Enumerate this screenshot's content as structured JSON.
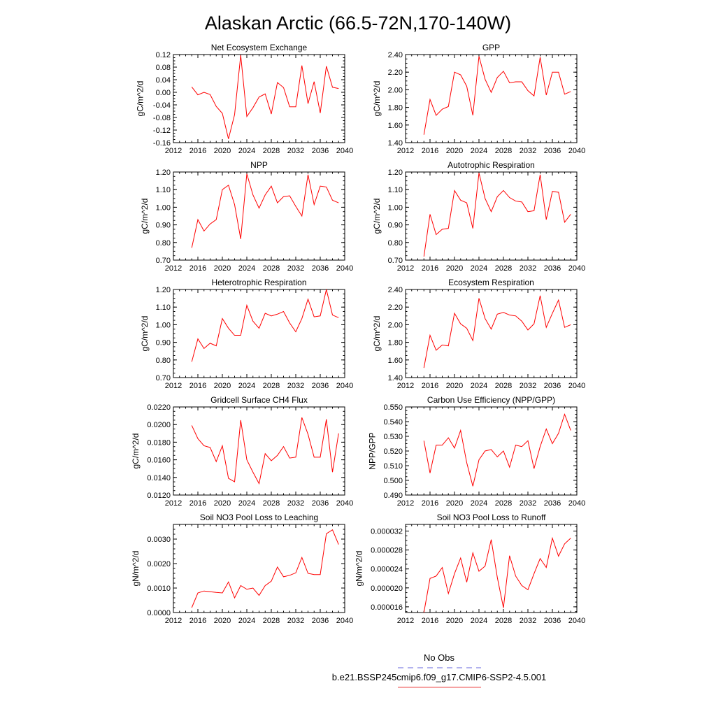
{
  "figure": {
    "title": "Alaskan Arctic (66.5-72N,170-140W)"
  },
  "legend": {
    "entries": [
      {
        "label": "No Obs",
        "color": "#6666dd",
        "dash": true
      },
      {
        "label": "b.e21.BSSP245cmip6.f09_g17.CMIP6-SSP2-4.5.001",
        "color": "#ee4444",
        "dash": false
      }
    ]
  },
  "chart_data": [
    {
      "type": "line",
      "title": "Net Ecosystem Exchange",
      "ylabel": "gC/m^2/d",
      "xlim": [
        2012,
        2040
      ],
      "xticks": [
        2012,
        2016,
        2020,
        2024,
        2028,
        2032,
        2036,
        2040
      ],
      "ylim": [
        -0.16,
        0.12
      ],
      "yticks": [
        "-0.16",
        "-0.12",
        "-0.08",
        "-0.04",
        "0.00",
        "0.04",
        "0.08",
        "0.12"
      ],
      "yminor": 0.01,
      "color": "#ff0000",
      "x": [
        2015,
        2016,
        2017,
        2018,
        2019,
        2020,
        2021,
        2022,
        2023,
        2024,
        2025,
        2026,
        2027,
        2028,
        2029,
        2030,
        2031,
        2032,
        2033,
        2034,
        2035,
        2036,
        2037,
        2038,
        2039
      ],
      "values": [
        0.017,
        -0.008,
        0.0,
        -0.007,
        -0.045,
        -0.067,
        -0.148,
        -0.071,
        0.118,
        -0.077,
        -0.049,
        -0.015,
        -0.005,
        -0.069,
        0.031,
        0.015,
        -0.046,
        -0.046,
        0.085,
        -0.036,
        0.034,
        -0.066,
        0.083,
        0.016,
        0.012
      ]
    },
    {
      "type": "line",
      "title": "GPP",
      "ylabel": "gC/m^2/d",
      "xlim": [
        2012,
        2040
      ],
      "xticks": [
        2012,
        2016,
        2020,
        2024,
        2028,
        2032,
        2036,
        2040
      ],
      "ylim": [
        1.4,
        2.4
      ],
      "yticks": [
        "1.40",
        "1.60",
        "1.80",
        "2.00",
        "2.20",
        "2.40"
      ],
      "yminor": 0.05,
      "color": "#ff0000",
      "x": [
        2015,
        2016,
        2017,
        2018,
        2019,
        2020,
        2021,
        2022,
        2023,
        2024,
        2025,
        2026,
        2027,
        2028,
        2029,
        2030,
        2031,
        2032,
        2033,
        2034,
        2035,
        2036,
        2037,
        2038,
        2039
      ],
      "values": [
        1.49,
        1.89,
        1.71,
        1.78,
        1.81,
        2.2,
        2.17,
        2.04,
        1.71,
        2.38,
        2.12,
        1.97,
        2.14,
        2.21,
        2.08,
        2.09,
        2.09,
        1.99,
        1.93,
        2.37,
        1.94,
        2.2,
        2.2,
        1.95,
        1.98
      ]
    },
    {
      "type": "line",
      "title": "NPP",
      "ylabel": "gC/m^2/d",
      "xlim": [
        2012,
        2040
      ],
      "xticks": [
        2012,
        2016,
        2020,
        2024,
        2028,
        2032,
        2036,
        2040
      ],
      "ylim": [
        0.7,
        1.2
      ],
      "yticks": [
        "0.70",
        "0.80",
        "0.90",
        "1.00",
        "1.10",
        "1.20"
      ],
      "yminor": 0.025,
      "color": "#ff0000",
      "x": [
        2015,
        2016,
        2017,
        2018,
        2019,
        2020,
        2021,
        2022,
        2023,
        2024,
        2025,
        2026,
        2027,
        2028,
        2029,
        2030,
        2031,
        2032,
        2033,
        2034,
        2035,
        2036,
        2037,
        2038,
        2039
      ],
      "values": [
        0.77,
        0.93,
        0.865,
        0.905,
        0.93,
        1.1,
        1.125,
        1.015,
        0.82,
        1.19,
        1.07,
        0.995,
        1.07,
        1.12,
        1.025,
        1.06,
        1.065,
        1.005,
        0.95,
        1.185,
        1.015,
        1.12,
        1.115,
        1.04,
        1.025
      ]
    },
    {
      "type": "line",
      "title": "Autotrophic Respiration",
      "ylabel": "gC/m^2/d",
      "xlim": [
        2012,
        2040
      ],
      "xticks": [
        2012,
        2016,
        2020,
        2024,
        2028,
        2032,
        2036,
        2040
      ],
      "ylim": [
        0.7,
        1.2
      ],
      "yticks": [
        "0.70",
        "0.80",
        "0.90",
        "1.00",
        "1.10",
        "1.20"
      ],
      "yminor": 0.025,
      "color": "#ff0000",
      "x": [
        2015,
        2016,
        2017,
        2018,
        2019,
        2020,
        2021,
        2022,
        2023,
        2024,
        2025,
        2026,
        2027,
        2028,
        2029,
        2030,
        2031,
        2032,
        2033,
        2034,
        2035,
        2036,
        2037,
        2038,
        2039
      ],
      "values": [
        0.72,
        0.96,
        0.845,
        0.875,
        0.88,
        1.095,
        1.04,
        1.025,
        0.88,
        1.195,
        1.05,
        0.975,
        1.06,
        1.095,
        1.055,
        1.035,
        1.03,
        0.975,
        0.98,
        1.185,
        0.93,
        1.09,
        1.085,
        0.915,
        0.96
      ]
    },
    {
      "type": "line",
      "title": "Heterotrophic Respiration",
      "ylabel": "gC/m^2/d",
      "xlim": [
        2012,
        2040
      ],
      "xticks": [
        2012,
        2016,
        2020,
        2024,
        2028,
        2032,
        2036,
        2040
      ],
      "ylim": [
        0.7,
        1.2
      ],
      "yticks": [
        "0.70",
        "0.80",
        "0.90",
        "1.00",
        "1.10",
        "1.20"
      ],
      "yminor": 0.025,
      "color": "#ff0000",
      "x": [
        2015,
        2016,
        2017,
        2018,
        2019,
        2020,
        2021,
        2022,
        2023,
        2024,
        2025,
        2026,
        2027,
        2028,
        2029,
        2030,
        2031,
        2032,
        2033,
        2034,
        2035,
        2036,
        2037,
        2038,
        2039
      ],
      "values": [
        0.79,
        0.92,
        0.865,
        0.895,
        0.88,
        1.035,
        0.98,
        0.94,
        0.94,
        1.11,
        1.02,
        0.98,
        1.065,
        1.05,
        1.06,
        1.075,
        1.01,
        0.96,
        1.035,
        1.145,
        1.045,
        1.05,
        1.2,
        1.055,
        1.04
      ]
    },
    {
      "type": "line",
      "title": "Ecosystem Respiration",
      "ylabel": "gC/m^2/d",
      "xlim": [
        2012,
        2040
      ],
      "xticks": [
        2012,
        2016,
        2020,
        2024,
        2028,
        2032,
        2036,
        2040
      ],
      "ylim": [
        1.4,
        2.4
      ],
      "yticks": [
        "1.40",
        "1.60",
        "1.80",
        "2.00",
        "2.20",
        "2.40"
      ],
      "yminor": 0.05,
      "color": "#ff0000",
      "x": [
        2015,
        2016,
        2017,
        2018,
        2019,
        2020,
        2021,
        2022,
        2023,
        2024,
        2025,
        2026,
        2027,
        2028,
        2029,
        2030,
        2031,
        2032,
        2033,
        2034,
        2035,
        2036,
        2037,
        2038,
        2039
      ],
      "values": [
        1.51,
        1.88,
        1.71,
        1.77,
        1.76,
        2.13,
        2.01,
        1.96,
        1.82,
        2.3,
        2.07,
        1.95,
        2.12,
        2.14,
        2.11,
        2.1,
        2.04,
        1.94,
        2.01,
        2.33,
        1.97,
        2.13,
        2.28,
        1.97,
        2.0
      ]
    },
    {
      "type": "line",
      "title": "Gridcell Surface CH4 Flux",
      "ylabel": "gC/m^2/d",
      "xlim": [
        2012,
        2040
      ],
      "xticks": [
        2012,
        2016,
        2020,
        2024,
        2028,
        2032,
        2036,
        2040
      ],
      "ylim": [
        0.012,
        0.022
      ],
      "yticks": [
        "0.0120",
        "0.0140",
        "0.0160",
        "0.0180",
        "0.0200",
        "0.0220"
      ],
      "yminor": 0.0005,
      "color": "#ff0000",
      "x": [
        2015,
        2016,
        2017,
        2018,
        2019,
        2020,
        2021,
        2022,
        2023,
        2024,
        2025,
        2026,
        2027,
        2028,
        2029,
        2030,
        2031,
        2032,
        2033,
        2034,
        2035,
        2036,
        2037,
        2038,
        2039
      ],
      "values": [
        0.0199,
        0.0184,
        0.0176,
        0.0174,
        0.0158,
        0.0176,
        0.0139,
        0.0135,
        0.0205,
        0.016,
        0.0146,
        0.0133,
        0.0167,
        0.0159,
        0.0165,
        0.0175,
        0.0162,
        0.0163,
        0.0208,
        0.0189,
        0.0163,
        0.0163,
        0.0206,
        0.0146,
        0.019
      ]
    },
    {
      "type": "line",
      "title": "Carbon Use Efficiency (NPP/GPP)",
      "ylabel": "NPP/GPP",
      "xlim": [
        2012,
        2040
      ],
      "xticks": [
        2012,
        2016,
        2020,
        2024,
        2028,
        2032,
        2036,
        2040
      ],
      "ylim": [
        0.49,
        0.55
      ],
      "yticks": [
        "0.490",
        "0.500",
        "0.510",
        "0.520",
        "0.530",
        "0.540",
        "0.550"
      ],
      "yminor": 0.0025,
      "color": "#ff0000",
      "x": [
        2015,
        2016,
        2017,
        2018,
        2019,
        2020,
        2021,
        2022,
        2023,
        2024,
        2025,
        2026,
        2027,
        2028,
        2029,
        2030,
        2031,
        2032,
        2033,
        2034,
        2035,
        2036,
        2037,
        2038,
        2039
      ],
      "values": [
        0.527,
        0.505,
        0.524,
        0.524,
        0.529,
        0.522,
        0.534,
        0.512,
        0.496,
        0.514,
        0.52,
        0.521,
        0.516,
        0.52,
        0.509,
        0.524,
        0.523,
        0.527,
        0.508,
        0.523,
        0.535,
        0.525,
        0.532,
        0.545,
        0.534
      ]
    },
    {
      "type": "line",
      "title": "Soil NO3 Pool Loss to Leaching",
      "ylabel": "gN/m^2/d",
      "xlim": [
        2012,
        2040
      ],
      "xticks": [
        2012,
        2016,
        2020,
        2024,
        2028,
        2032,
        2036,
        2040
      ],
      "ylim": [
        0,
        0.0036
      ],
      "yticks": [
        "0.0000",
        "0.0010",
        "0.0020",
        "0.0030"
      ],
      "ytickvals": [
        0,
        0.001,
        0.002,
        0.003
      ],
      "yminor": 0.0002,
      "color": "#ff0000",
      "x": [
        2015,
        2016,
        2017,
        2018,
        2019,
        2020,
        2021,
        2022,
        2023,
        2024,
        2025,
        2026,
        2027,
        2028,
        2029,
        2030,
        2031,
        2032,
        2033,
        2034,
        2035,
        2036,
        2037,
        2038,
        2039
      ],
      "values": [
        0.0002,
        0.0008,
        0.00088,
        0.00085,
        0.00082,
        0.0008,
        0.00125,
        0.0006,
        0.0011,
        0.00095,
        0.001,
        0.0007,
        0.0011,
        0.00128,
        0.00186,
        0.00146,
        0.00152,
        0.00162,
        0.00225,
        0.0016,
        0.00155,
        0.00155,
        0.00322,
        0.00338,
        0.00278
      ]
    },
    {
      "type": "line",
      "title": "Soil NO3 Pool Loss to Runoff",
      "ylabel": "gN/m^2/d",
      "xlim": [
        2012,
        2040
      ],
      "xticks": [
        2012,
        2016,
        2020,
        2024,
        2028,
        2032,
        2036,
        2040
      ],
      "ylim": [
        1.48e-05,
        3.34e-05
      ],
      "yticks": [
        "0.000016",
        "0.000020",
        "0.000024",
        "0.000028",
        "0.000032"
      ],
      "ytickvals": [
        1.6e-05,
        2e-05,
        2.4e-05,
        2.8e-05,
        3.2e-05
      ],
      "yminor": 1e-06,
      "color": "#ff0000",
      "x": [
        2015,
        2016,
        2017,
        2018,
        2019,
        2020,
        2021,
        2022,
        2023,
        2024,
        2025,
        2026,
        2027,
        2028,
        2029,
        2030,
        2031,
        2032,
        2033,
        2034,
        2035,
        2036,
        2037,
        2038,
        2039
      ],
      "values": [
        1.48e-05,
        2.2e-05,
        2.25e-05,
        2.43e-05,
        1.88e-05,
        2.3e-05,
        2.63e-05,
        2.12e-05,
        2.74e-05,
        2.35e-05,
        2.46e-05,
        3.02e-05,
        2.22e-05,
        1.58e-05,
        2.68e-05,
        2.25e-05,
        2.05e-05,
        1.96e-05,
        2.3e-05,
        2.62e-05,
        2.43e-05,
        3.05e-05,
        2.67e-05,
        2.93e-05,
        3.05e-05
      ]
    }
  ]
}
